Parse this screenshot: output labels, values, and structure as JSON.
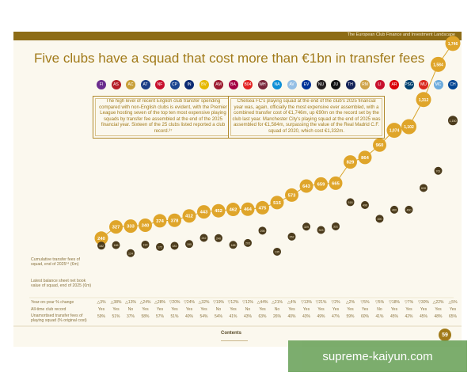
{
  "header": {
    "section": "The European Club Finance and Investment Landscape"
  },
  "title": "Five clubs have a squad that cost more than €1bn in transfer fees",
  "callouts": [
    "The high level of recent English club transfer spending compared with non-English clubs is evident, with the Premier League hosting seven of the top ten most expensive playing squads by transfer fee assembled at the end of the 2025 financial year. Sixteen of the 25 clubs listed reported a club record.³⁷",
    "Chelsea FC's playing squad at the end of the club's 2025 financial year was, again, officially the most expensive ever assembled, with a combined transfer cost of €1,746m, up €90m on the record set by the club last year. Manchester City's playing squad at the end of 2025 was assembled for €1,584m, surpassing the value of the Real Madrid C.F. squad of 2020, which cost €1,332m."
  ],
  "row_labels": {
    "cumulative": "Cumulative transfer fees of squad, end of 2025²⁴ (€m)",
    "book": "Latest balance sheet net book value of squad, end of 2025 (€m)",
    "yoy": "Year-on-year % change",
    "record": "All-time club record",
    "unamortised": "Unamortised transfer fees of playing squad (% original cost)"
  },
  "chart_data": {
    "type": "scatter",
    "title": "Five clubs have a squad that cost more than €1bn in transfer fees",
    "series": [
      {
        "name": "Cumulative transfer fees of squad, end of 2025 (€m)",
        "values": [
          240,
          327,
          333,
          340,
          374,
          378,
          412,
          443,
          452,
          462,
          464,
          475,
          515,
          573,
          643,
          659,
          665,
          829,
          864,
          960,
          1074,
          1102,
          1312,
          1584,
          1746
        ]
      },
      {
        "name": "Latest balance sheet net book value of squad, end of 2025 (€m)",
        "values": [
          182,
          186,
          124,
          190,
          172,
          181,
          195,
          242,
          240,
          188,
          203,
          298,
          135,
          252,
          329,
          303,
          331,
          518,
          496,
          390,
          460,
          460,
          628,
          761,
          1150
        ]
      }
    ],
    "yoy_change": [
      "△3%",
      "△38%",
      "△13%",
      "△24%",
      "△28%",
      "▽20%",
      "▽24%",
      "△32%",
      "▽19%",
      "▽12%",
      "▽12%",
      "△44%",
      "△21%",
      "△4%",
      "▽13%",
      "▽21%",
      "▽2%",
      "△2%",
      "▽5%",
      "▽5%",
      "▽18%",
      "▽7%",
      "▽30%",
      "△22%",
      "△5%"
    ],
    "club_record": [
      "Yes",
      "Yes",
      "No",
      "Yes",
      "Yes",
      "Yes",
      "Yes",
      "Yes",
      "No",
      "Yes",
      "No",
      "Yes",
      "No",
      "Yes",
      "Yes",
      "Yes",
      "Yes",
      "Yes",
      "Yes",
      "No",
      "Yes",
      "Yes",
      "Yes",
      "Yes",
      "Yes"
    ],
    "unamortised_pct": [
      "59%",
      "51%",
      "37%",
      "58%",
      "57%",
      "51%",
      "40%",
      "54%",
      "54%",
      "41%",
      "43%",
      "63%",
      "26%",
      "40%",
      "43%",
      "49%",
      "47%",
      "59%",
      "60%",
      "41%",
      "45%",
      "42%",
      "45%",
      "48%",
      "65%"
    ],
    "ylim": [
      0,
      1800
    ]
  },
  "crests": [
    {
      "abbr": "FI",
      "color": "#6b2d8e"
    },
    {
      "abbr": "AS",
      "color": "#b51f29"
    },
    {
      "abbr": "AC",
      "color": "#c89f38"
    },
    {
      "abbr": "AT",
      "color": "#1d3e86"
    },
    {
      "abbr": "NF",
      "color": "#c8102e"
    },
    {
      "abbr": "CP",
      "color": "#1b458f"
    },
    {
      "abbr": "IN",
      "color": "#0b2a72"
    },
    {
      "abbr": "BV",
      "color": "#e6b800"
    },
    {
      "abbr": "AM",
      "color": "#9d1b30"
    },
    {
      "abbr": "BA",
      "color": "#a50044"
    },
    {
      "abbr": "B04",
      "color": "#e32221"
    },
    {
      "abbr": "WH",
      "color": "#7a263a"
    },
    {
      "abbr": "NA",
      "color": "#0d8fd6"
    },
    {
      "abbr": "AV",
      "color": "#95bfe5"
    },
    {
      "abbr": "EV",
      "color": "#003399"
    },
    {
      "abbr": "NU",
      "color": "#241f20"
    },
    {
      "abbr": "JU",
      "color": "#111111"
    },
    {
      "abbr": "TH",
      "color": "#132257"
    },
    {
      "abbr": "RM",
      "color": "#cfa349"
    },
    {
      "abbr": "LI",
      "color": "#c8102e"
    },
    {
      "abbr": "AR",
      "color": "#db0007"
    },
    {
      "abbr": "PSG",
      "color": "#004170"
    },
    {
      "abbr": "MU",
      "color": "#da291c"
    },
    {
      "abbr": "MC",
      "color": "#6cabdd"
    },
    {
      "abbr": "CH",
      "color": "#034694"
    }
  ],
  "footer": {
    "contents": "Contents",
    "page_number": "59"
  },
  "watermark": "supreme-kaiyun.com"
}
